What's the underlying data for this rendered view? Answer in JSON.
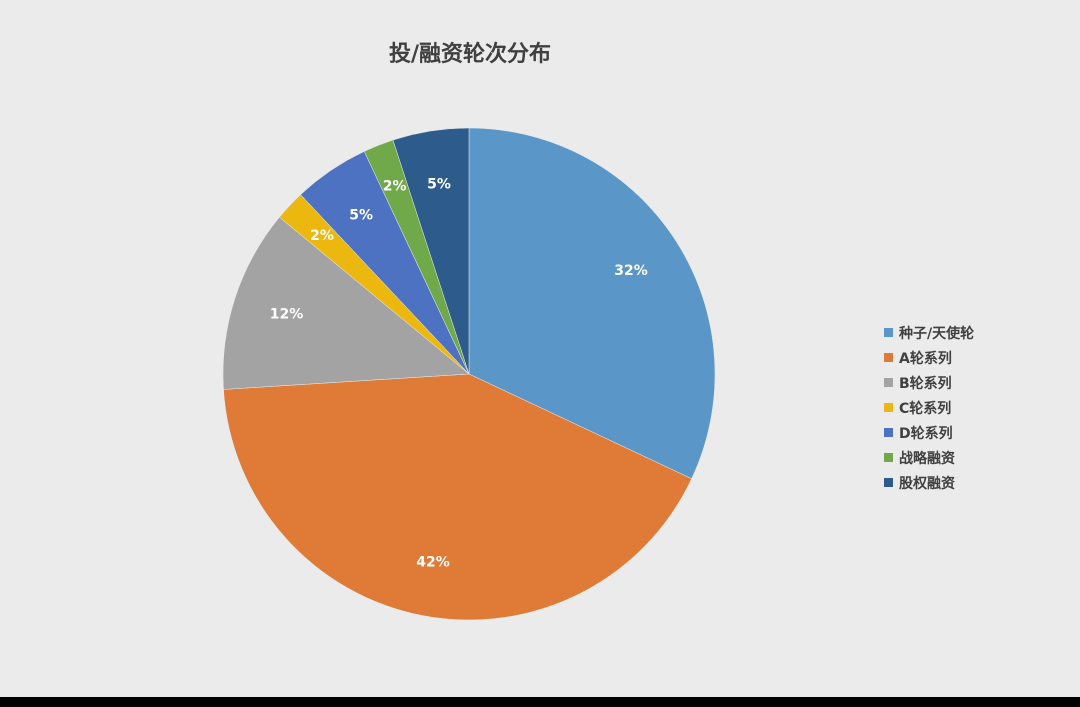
{
  "chart_data": {
    "type": "pie",
    "title": "投/融资轮次分布",
    "legend_position": "right",
    "slices": [
      {
        "name": "种子/天使轮",
        "value": 32,
        "label": "32%",
        "color": "#5b96c9"
      },
      {
        "name": "A轮系列",
        "value": 42,
        "label": "42%",
        "color": "#df7a37"
      },
      {
        "name": "B轮系列",
        "value": 12,
        "label": "12%",
        "color": "#a3a3a3"
      },
      {
        "name": "C轮系列",
        "value": 2,
        "label": "2%",
        "color": "#ecb80f"
      },
      {
        "name": "D轮系列",
        "value": 5,
        "label": "5%",
        "color": "#4c72c1"
      },
      {
        "name": "战略融资",
        "value": 2,
        "label": "2%",
        "color": "#70a94a"
      },
      {
        "name": "股权融资",
        "value": 5,
        "label": "5%",
        "color": "#2c5b8c"
      }
    ]
  }
}
